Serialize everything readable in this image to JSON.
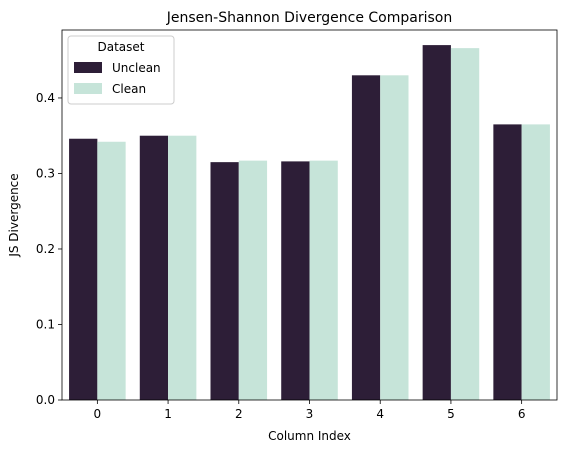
{
  "chart_data": {
    "type": "bar",
    "title": "Jensen-Shannon Divergence Comparison",
    "xlabel": "Column Index",
    "ylabel": "JS Divergence",
    "categories": [
      "0",
      "1",
      "2",
      "3",
      "4",
      "5",
      "6"
    ],
    "series": [
      {
        "name": "Unclean",
        "color": "#2d1e37",
        "values": [
          0.346,
          0.35,
          0.315,
          0.316,
          0.43,
          0.47,
          0.365
        ]
      },
      {
        "name": "Clean",
        "color": "#c6e4d9",
        "values": [
          0.342,
          0.35,
          0.317,
          0.317,
          0.43,
          0.466,
          0.365
        ]
      }
    ],
    "ylim": [
      0,
      0.49
    ],
    "yticks": [
      0.0,
      0.1,
      0.2,
      0.3,
      0.4
    ],
    "ytick_labels": [
      "0.0",
      "0.1",
      "0.2",
      "0.3",
      "0.4"
    ],
    "grid": false,
    "legend": {
      "title": "Dataset",
      "placement": "top-left"
    }
  }
}
